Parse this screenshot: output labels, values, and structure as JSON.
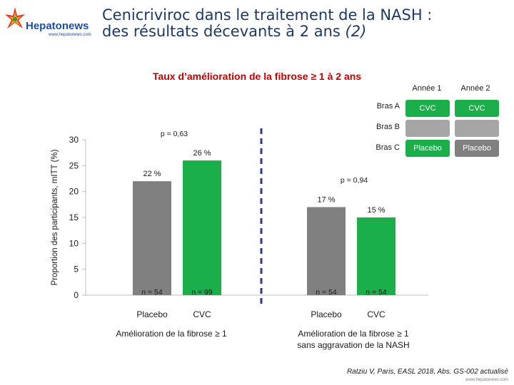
{
  "header": {
    "logo_name": "Hepatonews",
    "logo_url": "www.hepatonews.com",
    "title_line1": "Cenicriviroc dans le traitement de la NASH :",
    "title_line2_main": "des résultats décevants à 2 ans ",
    "title_line2_ref": "(2)"
  },
  "colors": {
    "placebo": "#808080",
    "cvc": "#1aaf4b",
    "title": "#1f3864",
    "chart_title": "#c00000",
    "divider": "#2f3b8c"
  },
  "legend": {
    "col1": "Année 1",
    "col2": "Année 2",
    "rows": [
      {
        "label": "Bras A",
        "year1": "CVC",
        "year2": "CVC",
        "color1": "#1aaf4b",
        "color2": "#1aaf4b"
      },
      {
        "label": "Bras B",
        "year1": "",
        "year2": "",
        "color1": "#a6a6a6",
        "color2": "#a6a6a6"
      },
      {
        "label": "Bras C",
        "year1": "Placebo",
        "year2": "Placebo",
        "color1": "#1aaf4b",
        "color2": "#808080"
      }
    ]
  },
  "chart_data": {
    "type": "bar",
    "title": "Taux d’amélioration de la fibrose ≥ 1 à 2 ans",
    "ylabel": "Proportion des participants, mITT (%)",
    "ylim": [
      0,
      30
    ],
    "yticks": [
      "0",
      "5",
      "10",
      "15",
      "20",
      "25",
      "30"
    ],
    "groups": [
      {
        "label": "Amélioration de la fibrose ≥ 1",
        "pvalue": "p = 0,63",
        "bars": [
          {
            "category": "Placebo",
            "value": 22,
            "value_label": "22 %",
            "n_label": "n = 54",
            "color": "#808080"
          },
          {
            "category": "CVC",
            "value": 26,
            "value_label": "26 %",
            "n_label": "n = 99",
            "color": "#1aaf4b"
          }
        ]
      },
      {
        "label": "Amélioration de la fibrose ≥ 1\nsans aggravation de la NASH",
        "pvalue": "p = 0,94",
        "bars": [
          {
            "category": "Placebo",
            "value": 17,
            "value_label": "17 %",
            "n_label": "n = 54",
            "color": "#808080"
          },
          {
            "category": "CVC",
            "value": 15,
            "value_label": "15 %",
            "n_label": "n = 54",
            "color": "#1aaf4b"
          }
        ]
      }
    ]
  },
  "citation": "Ratziu V, Paris, EASL 2018, Abs. GS-002 actualisé",
  "footer_url": "www.hepatonews.com"
}
